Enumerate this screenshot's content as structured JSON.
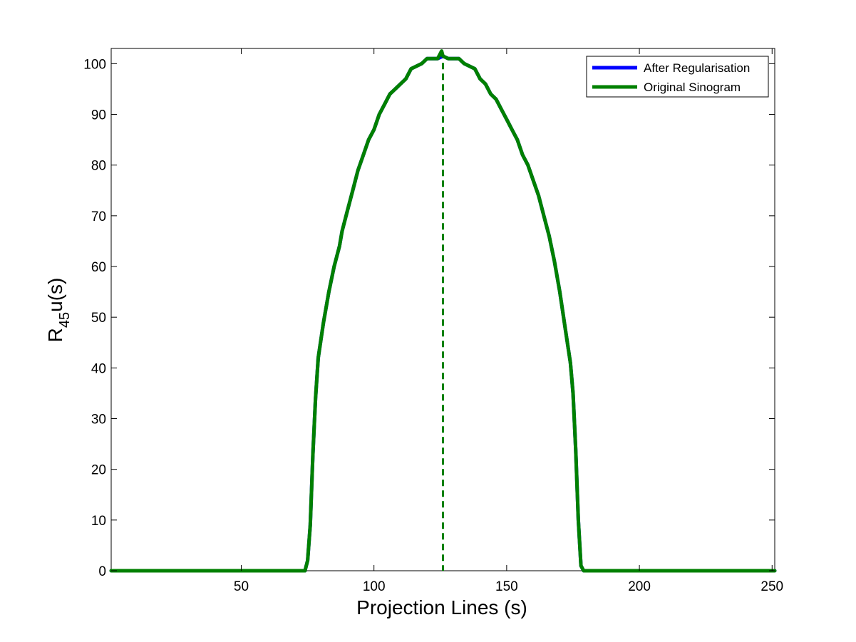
{
  "chart_data": {
    "type": "line",
    "title": "",
    "xlabel": "Projection Lines (s)",
    "ylabel": {
      "main": "R",
      "sub": "45",
      "rest": "u(s)"
    },
    "xlim": [
      1,
      251
    ],
    "ylim": [
      0,
      103
    ],
    "x_ticks": [
      50,
      100,
      150,
      200,
      250
    ],
    "y_ticks": [
      0,
      10,
      20,
      30,
      40,
      50,
      60,
      70,
      80,
      90,
      100
    ],
    "grid": false,
    "legend_position": "top-right",
    "series": [
      {
        "name": "After Regularisation",
        "color": "#0000ff",
        "points": [
          [
            1,
            0
          ],
          [
            74,
            0
          ],
          [
            75,
            2
          ],
          [
            76,
            9
          ],
          [
            77,
            23
          ],
          [
            78,
            34
          ],
          [
            79,
            42
          ],
          [
            81,
            49
          ],
          [
            83,
            55
          ],
          [
            85,
            60
          ],
          [
            87,
            64
          ],
          [
            88,
            67
          ],
          [
            90,
            71
          ],
          [
            92,
            75
          ],
          [
            94,
            79
          ],
          [
            96,
            82
          ],
          [
            98,
            85
          ],
          [
            100,
            87
          ],
          [
            102,
            90
          ],
          [
            104,
            92
          ],
          [
            106,
            94
          ],
          [
            108,
            95
          ],
          [
            110,
            96
          ],
          [
            112,
            97
          ],
          [
            114,
            99
          ],
          [
            116,
            99.5
          ],
          [
            118,
            100
          ],
          [
            120,
            101
          ],
          [
            122,
            101
          ],
          [
            124,
            101
          ],
          [
            126,
            101.5
          ],
          [
            128,
            101
          ],
          [
            130,
            101
          ],
          [
            132,
            101
          ],
          [
            134,
            100
          ],
          [
            136,
            99.5
          ],
          [
            138,
            99
          ],
          [
            140,
            97
          ],
          [
            142,
            96
          ],
          [
            144,
            94
          ],
          [
            146,
            93
          ],
          [
            148,
            91
          ],
          [
            150,
            89
          ],
          [
            152,
            87
          ],
          [
            154,
            85
          ],
          [
            156,
            82
          ],
          [
            158,
            80
          ],
          [
            160,
            77
          ],
          [
            162,
            74
          ],
          [
            164,
            70
          ],
          [
            166,
            66
          ],
          [
            168,
            61
          ],
          [
            170,
            55
          ],
          [
            172,
            48
          ],
          [
            174,
            41
          ],
          [
            175,
            35
          ],
          [
            176,
            24
          ],
          [
            177,
            10
          ],
          [
            178,
            1
          ],
          [
            179,
            0
          ],
          [
            251,
            0
          ]
        ]
      },
      {
        "name": "Original Sinogram",
        "color": "#008000",
        "points": [
          [
            1,
            0
          ],
          [
            74,
            0
          ],
          [
            75,
            2
          ],
          [
            76,
            9
          ],
          [
            77,
            23
          ],
          [
            78,
            34
          ],
          [
            79,
            42
          ],
          [
            81,
            49
          ],
          [
            83,
            55
          ],
          [
            85,
            60
          ],
          [
            87,
            64
          ],
          [
            88,
            67
          ],
          [
            90,
            71
          ],
          [
            92,
            75
          ],
          [
            94,
            79
          ],
          [
            96,
            82
          ],
          [
            98,
            85
          ],
          [
            100,
            87
          ],
          [
            102,
            90
          ],
          [
            104,
            92
          ],
          [
            106,
            94
          ],
          [
            108,
            95
          ],
          [
            110,
            96
          ],
          [
            112,
            97
          ],
          [
            114,
            99
          ],
          [
            116,
            99.5
          ],
          [
            118,
            100
          ],
          [
            120,
            101
          ],
          [
            122,
            101
          ],
          [
            124,
            101
          ],
          [
            125.5,
            102.5
          ],
          [
            126,
            101.5
          ],
          [
            128,
            101
          ],
          [
            130,
            101
          ],
          [
            132,
            101
          ],
          [
            134,
            100
          ],
          [
            136,
            99.5
          ],
          [
            138,
            99
          ],
          [
            140,
            97
          ],
          [
            142,
            96
          ],
          [
            144,
            94
          ],
          [
            146,
            93
          ],
          [
            148,
            91
          ],
          [
            150,
            89
          ],
          [
            152,
            87
          ],
          [
            154,
            85
          ],
          [
            156,
            82
          ],
          [
            158,
            80
          ],
          [
            160,
            77
          ],
          [
            162,
            74
          ],
          [
            164,
            70
          ],
          [
            166,
            66
          ],
          [
            168,
            61
          ],
          [
            170,
            55
          ],
          [
            172,
            48
          ],
          [
            174,
            41
          ],
          [
            175,
            35
          ],
          [
            176,
            24
          ],
          [
            177,
            10
          ],
          [
            178,
            1
          ],
          [
            179,
            0
          ],
          [
            251,
            0
          ]
        ]
      }
    ],
    "reference_line": {
      "x": 126,
      "color": "#008000",
      "style": "dashed"
    }
  }
}
